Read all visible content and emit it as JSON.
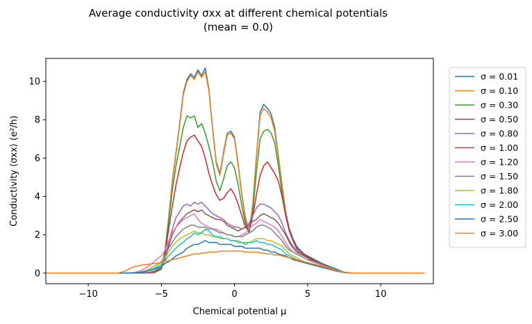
{
  "chart_data": {
    "type": "line",
    "title": "Average conductivity σxx at different chemical potentials",
    "subtitle": "(mean = 0.0)",
    "xlabel": "Chemical potential μ",
    "ylabel": "Conductivity ⟨σxx⟩ (e²/h)",
    "xlim": [
      -12.9,
      13.6
    ],
    "ylim": [
      -0.55,
      11.2
    ],
    "xticks": [
      -10,
      -5,
      0,
      5,
      10
    ],
    "xtick_labels": [
      "−10",
      "−5",
      "0",
      "5",
      "10"
    ],
    "yticks": [
      0,
      2,
      4,
      6,
      8,
      10
    ],
    "ytick_labels": [
      "0",
      "2",
      "4",
      "6",
      "8",
      "10"
    ],
    "grid": false,
    "legend_position": "outside-right",
    "x": [
      -13,
      -12,
      -11,
      -10,
      -9,
      -8,
      -7.5,
      -7,
      -6.5,
      -6,
      -5.5,
      -5,
      -4.75,
      -4.5,
      -4.25,
      -4,
      -3.75,
      -3.5,
      -3.25,
      -3,
      -2.75,
      -2.5,
      -2.25,
      -2,
      -1.75,
      -1.5,
      -1.25,
      -1,
      -0.75,
      -0.5,
      -0.25,
      0,
      0.25,
      0.5,
      0.75,
      1,
      1.25,
      1.5,
      1.75,
      2,
      2.25,
      2.5,
      2.75,
      3,
      3.25,
      3.5,
      3.75,
      4,
      4.25,
      4.5,
      4.75,
      5,
      5.5,
      6,
      6.5,
      7,
      7.5,
      8,
      9,
      10,
      11,
      12,
      13
    ],
    "series": [
      {
        "name": "σ = 0.01",
        "color": "#1f77b4",
        "values": [
          0,
          0,
          0,
          0,
          0,
          0,
          0,
          0,
          0,
          0,
          0.02,
          0.2,
          1.2,
          2.9,
          4.8,
          6.3,
          7.8,
          9.4,
          10.1,
          10.4,
          10.2,
          10.6,
          10.3,
          10.7,
          9.6,
          7.6,
          5.8,
          5.2,
          6.3,
          7.3,
          7.4,
          7.1,
          5.7,
          4.1,
          2.9,
          2.2,
          3.6,
          6.1,
          8.4,
          8.8,
          8.6,
          8.3,
          7.6,
          6.1,
          4.6,
          3.2,
          2.3,
          1.8,
          1.4,
          1.2,
          1.0,
          0.9,
          0.7,
          0.5,
          0.35,
          0.2,
          0.05,
          0,
          0,
          0,
          0,
          0,
          0
        ]
      },
      {
        "name": "σ = 0.10",
        "color": "#ff7f0e",
        "values": [
          0,
          0,
          0,
          0,
          0,
          0,
          0,
          0,
          0,
          0,
          0.02,
          0.2,
          1.2,
          2.8,
          4.7,
          6.2,
          7.7,
          9.3,
          10.0,
          10.3,
          10.1,
          10.5,
          10.2,
          10.5,
          9.5,
          7.5,
          5.7,
          5.1,
          6.2,
          7.2,
          7.3,
          7.0,
          5.6,
          4.0,
          2.8,
          2.1,
          3.5,
          6.0,
          8.2,
          8.6,
          8.4,
          8.1,
          7.4,
          6.0,
          4.5,
          3.1,
          2.2,
          1.7,
          1.3,
          1.1,
          0.95,
          0.85,
          0.65,
          0.45,
          0.3,
          0.15,
          0.04,
          0,
          0,
          0,
          0,
          0,
          0
        ]
      },
      {
        "name": "σ = 0.30",
        "color": "#2ca02c",
        "values": [
          0,
          0,
          0,
          0,
          0,
          0,
          0,
          0,
          0,
          0,
          0.02,
          0.2,
          1.1,
          2.7,
          4.3,
          5.6,
          6.6,
          7.6,
          8.2,
          8.1,
          8.2,
          7.6,
          7.8,
          7.3,
          6.6,
          5.8,
          4.8,
          4.3,
          4.9,
          5.6,
          5.8,
          5.5,
          4.6,
          3.5,
          2.6,
          2.1,
          3.2,
          5.3,
          7.0,
          7.4,
          7.5,
          7.3,
          6.8,
          5.6,
          4.2,
          3.0,
          2.2,
          1.7,
          1.3,
          1.1,
          0.95,
          0.85,
          0.65,
          0.45,
          0.3,
          0.15,
          0.04,
          0,
          0,
          0,
          0,
          0,
          0
        ]
      },
      {
        "name": "σ = 0.50",
        "color": "#d62728",
        "values": [
          0,
          0,
          0,
          0,
          0,
          0,
          0,
          0,
          0,
          0,
          0.03,
          0.3,
          1.0,
          2.3,
          3.5,
          4.6,
          5.5,
          6.3,
          6.9,
          7.1,
          7.2,
          6.9,
          6.6,
          6.0,
          5.2,
          4.6,
          4.1,
          3.8,
          3.9,
          4.2,
          4.4,
          4.1,
          3.6,
          3.0,
          2.4,
          2.2,
          3.0,
          4.1,
          5.1,
          5.6,
          5.8,
          5.5,
          5.2,
          4.8,
          4.0,
          3.0,
          2.2,
          1.7,
          1.3,
          1.1,
          1.0,
          0.85,
          0.65,
          0.45,
          0.3,
          0.15,
          0.04,
          0,
          0,
          0,
          0,
          0,
          0
        ]
      },
      {
        "name": "σ = 0.80",
        "color": "#9467bd",
        "values": [
          0,
          0,
          0,
          0,
          0,
          0,
          0,
          0,
          0,
          0,
          0.05,
          0.3,
          0.8,
          1.6,
          2.3,
          2.9,
          3.2,
          3.5,
          3.6,
          3.5,
          3.7,
          3.6,
          3.7,
          3.5,
          3.3,
          3.1,
          3.0,
          2.9,
          2.8,
          2.6,
          2.5,
          2.4,
          2.4,
          2.3,
          2.4,
          2.6,
          3.0,
          3.4,
          3.6,
          3.6,
          3.5,
          3.4,
          3.2,
          3.0,
          2.6,
          2.1,
          1.7,
          1.4,
          1.2,
          1.0,
          0.9,
          0.8,
          0.6,
          0.45,
          0.3,
          0.15,
          0.04,
          0,
          0,
          0,
          0,
          0,
          0
        ]
      },
      {
        "name": "σ = 1.00",
        "color": "#8c564b",
        "values": [
          0,
          0,
          0,
          0,
          0,
          0,
          0,
          0,
          0,
          0.02,
          0.1,
          0.3,
          0.7,
          1.4,
          2.0,
          2.4,
          2.7,
          2.9,
          3.1,
          3.2,
          3.3,
          3.2,
          3.3,
          3.1,
          3.0,
          2.9,
          2.8,
          2.8,
          2.7,
          2.5,
          2.4,
          2.3,
          2.2,
          2.3,
          2.4,
          2.5,
          2.7,
          2.8,
          3.0,
          3.1,
          3.0,
          2.9,
          2.8,
          2.6,
          2.3,
          2.0,
          1.6,
          1.3,
          1.1,
          1.0,
          0.9,
          0.8,
          0.6,
          0.5,
          0.3,
          0.15,
          0.05,
          0,
          0,
          0,
          0,
          0,
          0
        ]
      },
      {
        "name": "σ = 1.20",
        "color": "#e377c2",
        "values": [
          0,
          0,
          0,
          0,
          0,
          0,
          0,
          0.02,
          0.1,
          0.3,
          0.6,
          0.9,
          1.2,
          1.7,
          2.1,
          2.4,
          2.6,
          2.8,
          2.9,
          3.0,
          3.1,
          2.8,
          2.6,
          2.5,
          2.4,
          2.3,
          2.3,
          2.2,
          2.1,
          2.0,
          2.0,
          1.9,
          1.9,
          2.0,
          2.1,
          2.3,
          2.5,
          2.6,
          2.8,
          2.7,
          2.6,
          2.5,
          2.4,
          2.2,
          1.9,
          1.6,
          1.3,
          1.1,
          1.0,
          0.9,
          0.8,
          0.7,
          0.55,
          0.4,
          0.25,
          0.12,
          0.04,
          0,
          0,
          0,
          0,
          0,
          0
        ]
      },
      {
        "name": "σ = 1.50",
        "color": "#7f7f7f",
        "values": [
          0,
          0,
          0,
          0,
          0,
          0,
          0,
          0.02,
          0.05,
          0.15,
          0.35,
          0.6,
          0.9,
          1.3,
          1.6,
          1.9,
          2.1,
          2.3,
          2.4,
          2.5,
          2.5,
          2.4,
          2.4,
          2.4,
          2.3,
          2.3,
          2.2,
          2.1,
          2.1,
          2.0,
          2.0,
          1.9,
          1.9,
          1.9,
          2.0,
          2.1,
          2.2,
          2.4,
          2.5,
          2.5,
          2.4,
          2.3,
          2.1,
          1.9,
          1.7,
          1.4,
          1.2,
          1.1,
          1.0,
          0.9,
          0.8,
          0.7,
          0.6,
          0.45,
          0.3,
          0.15,
          0.05,
          0,
          0,
          0,
          0,
          0,
          0
        ]
      },
      {
        "name": "σ = 1.80",
        "color": "#bcbd22",
        "values": [
          0,
          0,
          0,
          0,
          0,
          0,
          0,
          0.02,
          0.05,
          0.15,
          0.35,
          0.55,
          0.8,
          1.1,
          1.4,
          1.6,
          1.8,
          1.9,
          2.0,
          2.1,
          2.2,
          2.1,
          2.1,
          2.0,
          2.0,
          1.9,
          1.9,
          1.8,
          1.8,
          1.8,
          1.7,
          1.7,
          1.7,
          1.6,
          1.6,
          1.6,
          1.7,
          1.8,
          1.8,
          1.8,
          1.7,
          1.7,
          1.6,
          1.5,
          1.4,
          1.2,
          1.0,
          0.9,
          0.8,
          0.7,
          0.6,
          0.55,
          0.45,
          0.35,
          0.25,
          0.12,
          0.04,
          0,
          0,
          0,
          0,
          0,
          0
        ]
      },
      {
        "name": "σ = 2.00",
        "color": "#17becf",
        "values": [
          0,
          0,
          0,
          0,
          0,
          0,
          0,
          0.02,
          0.05,
          0.1,
          0.25,
          0.45,
          0.65,
          0.9,
          1.1,
          1.3,
          1.5,
          1.6,
          1.8,
          1.9,
          2.1,
          2.0,
          2.1,
          2.3,
          2.2,
          2.0,
          1.9,
          1.9,
          1.8,
          1.8,
          1.7,
          1.7,
          1.6,
          1.6,
          1.5,
          1.6,
          1.6,
          1.7,
          1.6,
          1.6,
          1.5,
          1.5,
          1.4,
          1.3,
          1.2,
          1.0,
          0.9,
          0.8,
          0.7,
          0.6,
          0.55,
          0.5,
          0.4,
          0.3,
          0.2,
          0.1,
          0.03,
          0,
          0,
          0,
          0,
          0,
          0
        ]
      },
      {
        "name": "σ = 2.50",
        "color": "#1f77b4",
        "values": [
          0,
          0,
          0,
          0,
          0,
          0,
          0,
          0,
          0.02,
          0.1,
          0.2,
          0.35,
          0.5,
          0.6,
          0.75,
          0.9,
          1.0,
          1.1,
          1.3,
          1.4,
          1.5,
          1.5,
          1.6,
          1.7,
          1.6,
          1.6,
          1.6,
          1.5,
          1.5,
          1.5,
          1.5,
          1.4,
          1.4,
          1.4,
          1.3,
          1.3,
          1.3,
          1.3,
          1.3,
          1.2,
          1.2,
          1.1,
          1.1,
          1.0,
          0.95,
          0.9,
          0.8,
          0.7,
          0.65,
          0.6,
          0.55,
          0.5,
          0.4,
          0.3,
          0.2,
          0.1,
          0.03,
          0,
          0,
          0,
          0,
          0,
          0
        ]
      },
      {
        "name": "σ = 3.00",
        "color": "#ff7f0e",
        "values": [
          0,
          0,
          0,
          0,
          0,
          0,
          0.1,
          0.3,
          0.4,
          0.45,
          0.5,
          0.55,
          0.6,
          0.65,
          0.7,
          0.75,
          0.8,
          0.85,
          0.9,
          0.95,
          1.0,
          1.0,
          1.05,
          1.05,
          1.1,
          1.1,
          1.1,
          1.15,
          1.15,
          1.15,
          1.15,
          1.15,
          1.15,
          1.15,
          1.1,
          1.1,
          1.1,
          1.1,
          1.05,
          1.05,
          1.0,
          1.0,
          0.95,
          0.95,
          0.9,
          0.85,
          0.8,
          0.75,
          0.7,
          0.65,
          0.6,
          0.55,
          0.45,
          0.35,
          0.25,
          0.12,
          0.05,
          0.01,
          0,
          0,
          0,
          0,
          0
        ]
      }
    ]
  }
}
